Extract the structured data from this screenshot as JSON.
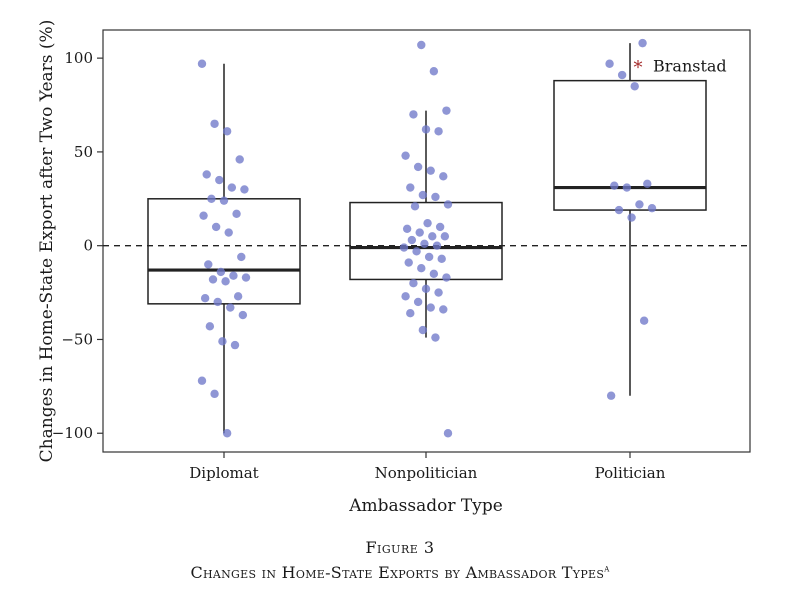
{
  "chart_data": {
    "type": "boxplot",
    "xlabel": "Ambassador Type",
    "ylabel": "Changes in Home-State Export after Two Years (%)",
    "ylim": [
      -110,
      115
    ],
    "yticks": [
      100,
      50,
      0,
      -50,
      -100
    ],
    "ytick_labels": [
      "100",
      "50",
      "0",
      "−50",
      "−100"
    ],
    "reference_line": 0,
    "categories": [
      "Diplomat",
      "Nonpolitician",
      "Politician"
    ],
    "boxes": [
      {
        "category": "Diplomat",
        "whisker_low": -100,
        "q1": -31,
        "median": -13,
        "q3": 25,
        "whisker_high": 97
      },
      {
        "category": "Nonpolitician",
        "whisker_low": -49,
        "q1": -18,
        "median": -1,
        "q3": 23,
        "whisker_high": 72
      },
      {
        "category": "Politician",
        "whisker_low": -80,
        "q1": 19,
        "median": 31,
        "q3": 88,
        "whisker_high": 108
      }
    ],
    "points": {
      "Diplomat": [
        97,
        65,
        61,
        46,
        38,
        35,
        31,
        30,
        25,
        24,
        17,
        16,
        10,
        7,
        -6,
        -10,
        -14,
        -16,
        -17,
        -18,
        -19,
        -27,
        -28,
        -30,
        -33,
        -37,
        -43,
        -51,
        -53,
        -72,
        -79,
        -100
      ],
      "Nonpolitician": [
        107,
        93,
        72,
        70,
        62,
        61,
        48,
        42,
        40,
        37,
        31,
        27,
        26,
        22,
        21,
        12,
        10,
        9,
        7,
        5,
        5,
        3,
        1,
        0,
        -1,
        -3,
        -6,
        -7,
        -9,
        -12,
        -15,
        -17,
        -20,
        -23,
        -25,
        -27,
        -30,
        -33,
        -34,
        -36,
        -45,
        -49,
        -100
      ],
      "Politician": [
        108,
        97,
        91,
        85,
        33,
        32,
        31,
        22,
        20,
        19,
        15,
        -40,
        -80
      ]
    },
    "annotations": [
      {
        "category": "Politician",
        "y": 96,
        "marker": "*",
        "text": "Branstad",
        "color": "#a52a2a"
      }
    ],
    "point_color": "#6f78c9",
    "grid": false
  },
  "caption": {
    "figure_number": "Figure 3",
    "title": "Changes in Home-State Exports by Ambassador Types",
    "superscript": "a"
  }
}
